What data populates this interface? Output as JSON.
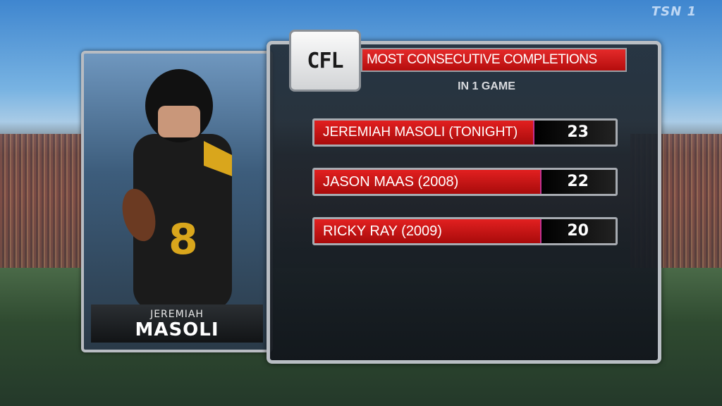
{
  "broadcaster": {
    "logo_text": "TSN 1"
  },
  "player": {
    "first_name": "JEREMIAH",
    "last_name": "MASOLI"
  },
  "graphic": {
    "league_logo_text": "CFL",
    "title": "MOST CONSECUTIVE COMPLETIONS",
    "subtitle": "IN 1 GAME",
    "rows": [
      {
        "label": "JEREMIAH MASOLI (TONIGHT)",
        "value": "23"
      },
      {
        "label": "JASON MAAS (2008)",
        "value": "22"
      },
      {
        "label": "RICKY RAY (2009)",
        "value": "20"
      }
    ]
  },
  "colors": {
    "accent_red": "#d51616",
    "panel_dark": "#1a2028",
    "frame_silver": "#b9bec4"
  }
}
